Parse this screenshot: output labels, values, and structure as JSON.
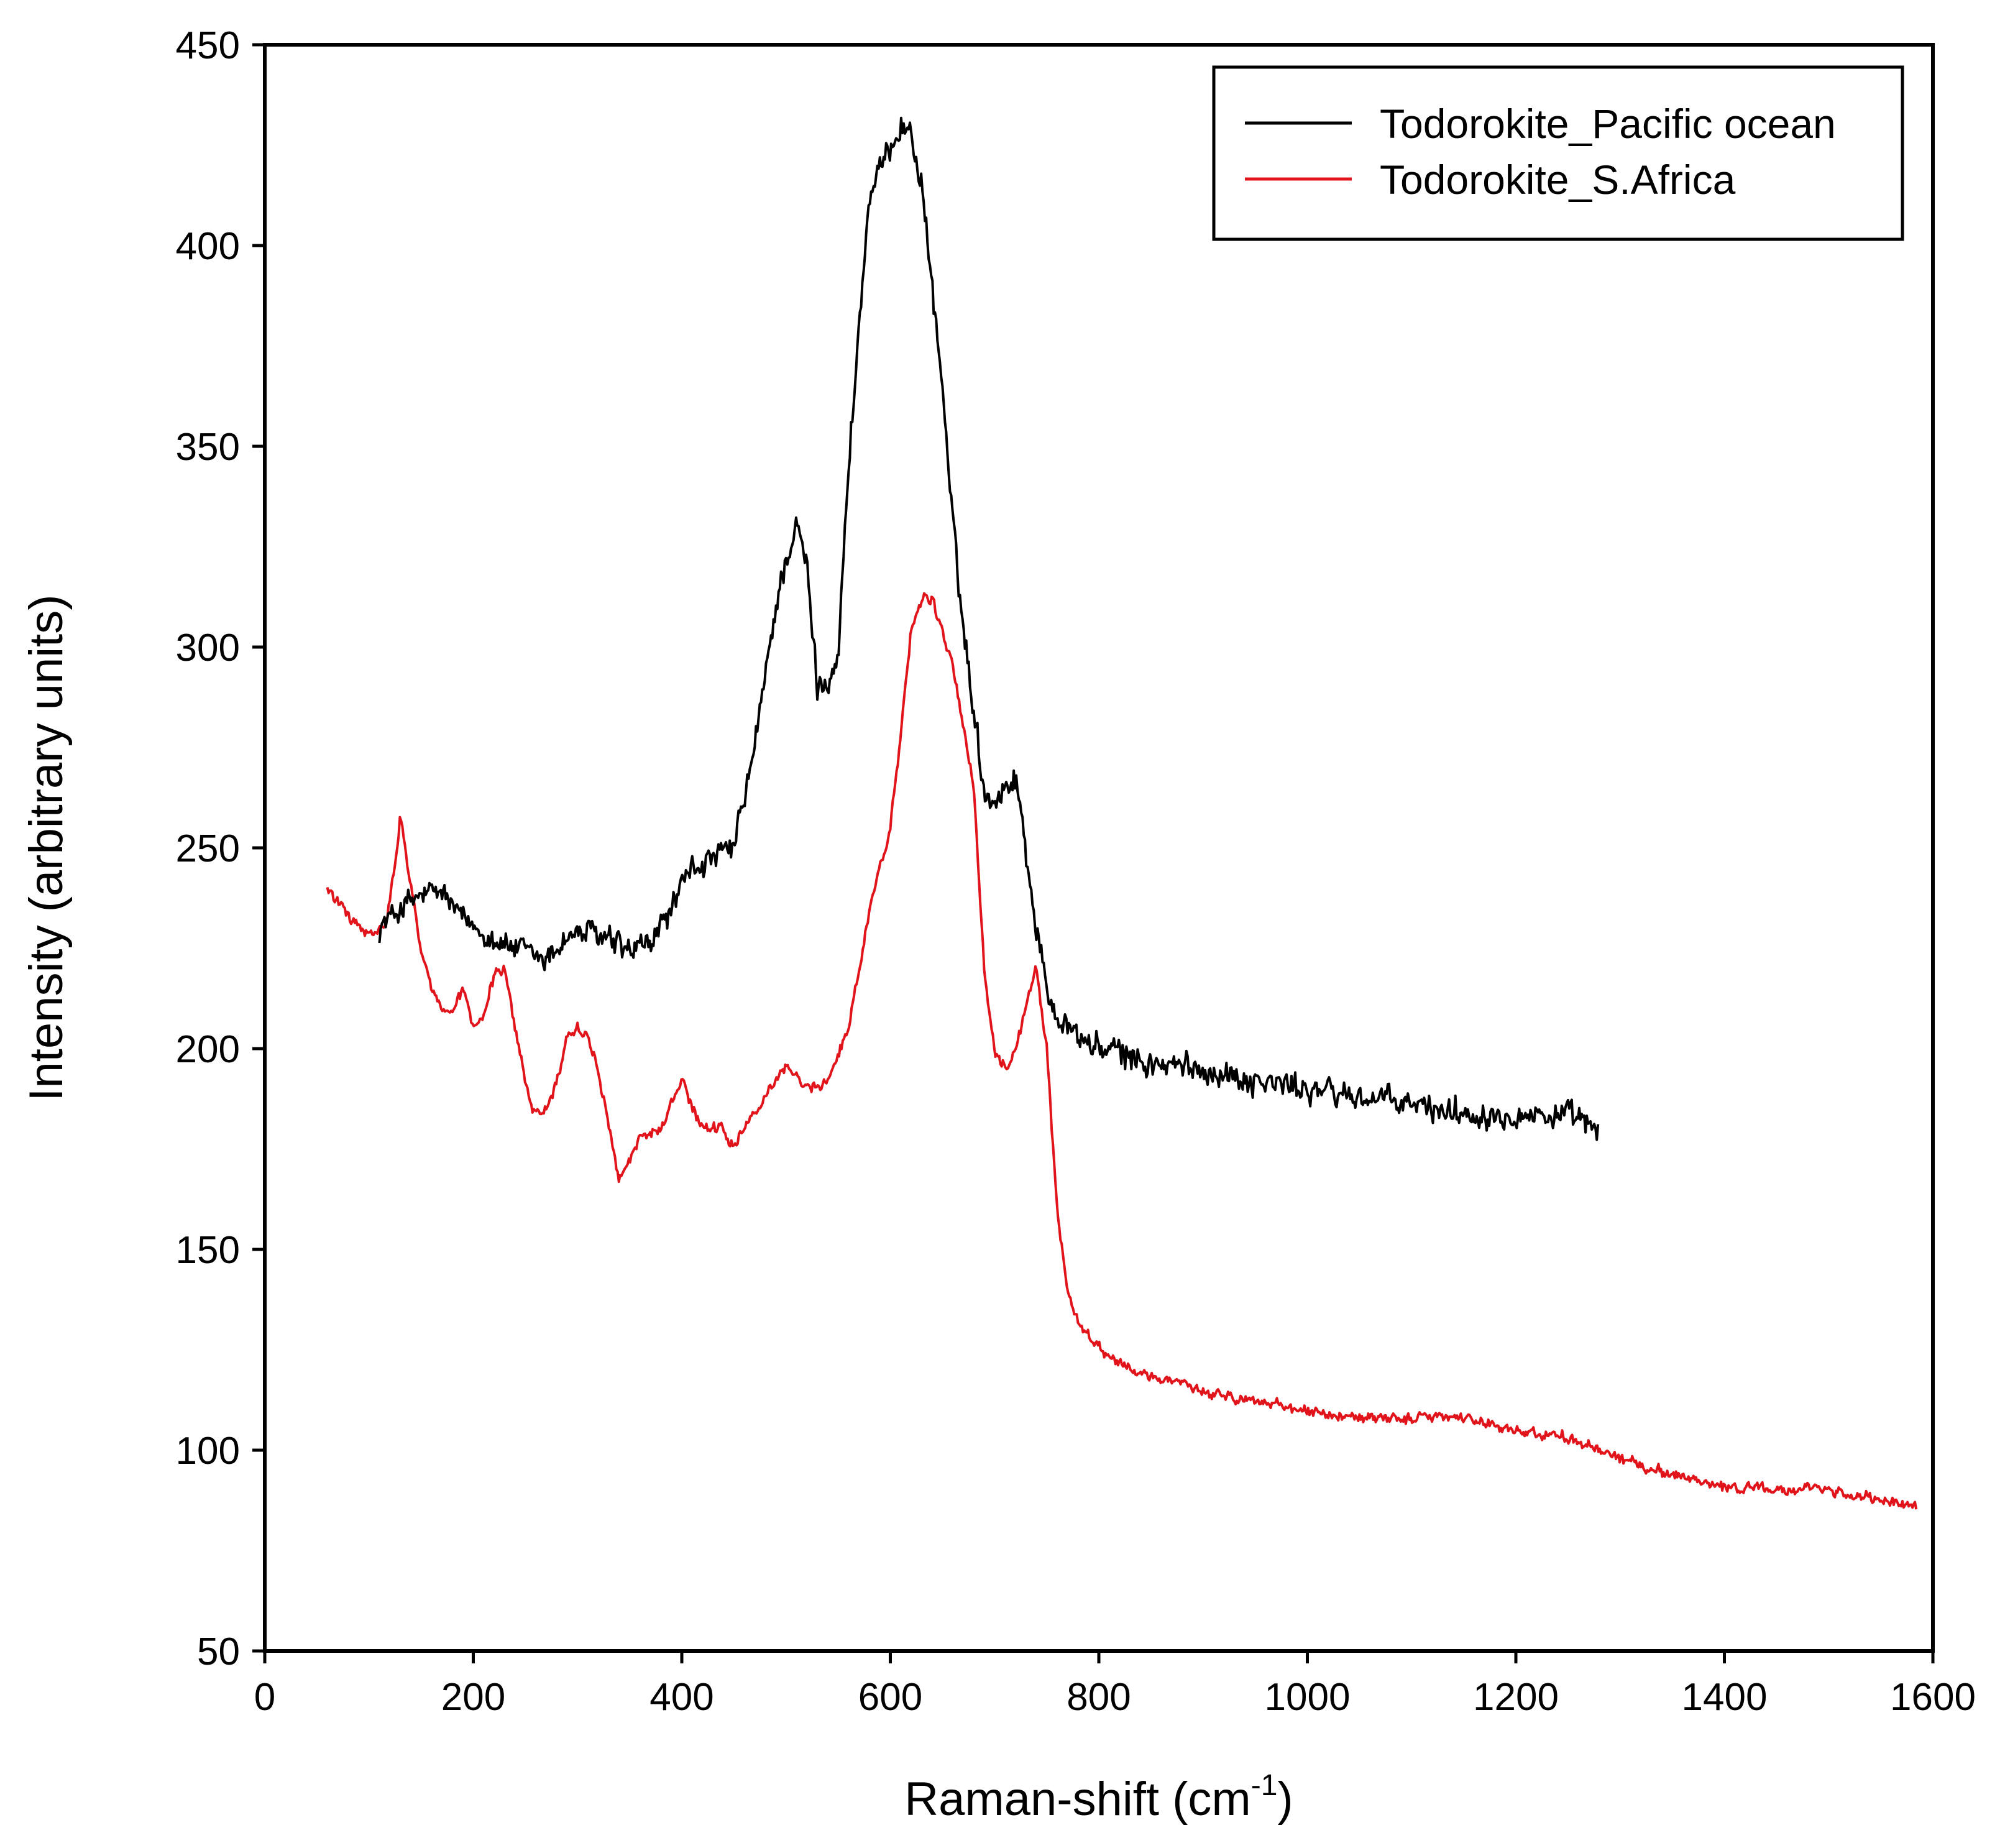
{
  "chart_data": {
    "type": "line",
    "title": "",
    "xlabel": "Raman-shift (cm-1)",
    "xlabel_parts": {
      "main": "Raman-shift (cm",
      "sup": "-1",
      "close": ")"
    },
    "ylabel": "Intensity (arbitrary units)",
    "xlim": [
      0,
      1600
    ],
    "ylim": [
      50,
      450
    ],
    "xticks": [
      0,
      200,
      400,
      600,
      800,
      1000,
      1200,
      1400,
      1600
    ],
    "yticks": [
      50,
      100,
      150,
      200,
      250,
      300,
      350,
      400,
      450
    ],
    "grid": false,
    "legend_position": "top-right",
    "series": [
      {
        "name": "Todorokite_Pacific ocean",
        "color": "#000000",
        "x": [
          110,
          130,
          150,
          170,
          190,
          210,
          230,
          250,
          270,
          290,
          310,
          330,
          350,
          370,
          390,
          410,
          430,
          450,
          470,
          490,
          500,
          510,
          520,
          530,
          540,
          550,
          560,
          570,
          580,
          590,
          600,
          610,
          620,
          630,
          640,
          650,
          660,
          670,
          680,
          690,
          700,
          710,
          720,
          730,
          740,
          750,
          760,
          770,
          780,
          800,
          820,
          850,
          900,
          950,
          1000,
          1050,
          1100,
          1150,
          1200,
          1250,
          1280
        ],
        "values": [
          230,
          235,
          238,
          239,
          232,
          229,
          226,
          224,
          222,
          228,
          229,
          227,
          224,
          226,
          235,
          245,
          247,
          250,
          275,
          310,
          322,
          330,
          320,
          290,
          292,
          298,
          345,
          380,
          412,
          418,
          425,
          430,
          428,
          415,
          390,
          365,
          330,
          305,
          285,
          264,
          262,
          265,
          268,
          250,
          230,
          215,
          208,
          206,
          203,
          200,
          199,
          196,
          195,
          192,
          190,
          188,
          186,
          184,
          184,
          183,
          180
        ],
        "noise": 4.5
      },
      {
        "name": "Todorokite_S.Africa",
        "color": "#e0141a",
        "x": [
          60,
          80,
          100,
          115,
          125,
          130,
          140,
          150,
          160,
          170,
          180,
          190,
          200,
          210,
          220,
          230,
          240,
          250,
          260,
          270,
          280,
          290,
          300,
          310,
          320,
          330,
          340,
          350,
          360,
          380,
          400,
          410,
          420,
          440,
          450,
          460,
          480,
          500,
          520,
          540,
          560,
          580,
          600,
          610,
          620,
          630,
          640,
          660,
          680,
          690,
          700,
          710,
          720,
          730,
          740,
          750,
          760,
          770,
          780,
          800,
          850,
          900,
          950,
          1000,
          1050,
          1100,
          1150,
          1200,
          1250,
          1300,
          1350,
          1400,
          1450,
          1500,
          1550,
          1585
        ],
        "values": [
          240,
          233,
          228,
          230,
          245,
          258,
          240,
          225,
          215,
          210,
          208,
          215,
          205,
          208,
          218,
          220,
          205,
          192,
          183,
          185,
          192,
          203,
          205,
          203,
          195,
          180,
          168,
          172,
          178,
          180,
          192,
          185,
          180,
          180,
          175,
          180,
          188,
          196,
          190,
          192,
          205,
          235,
          255,
          278,
          305,
          312,
          312,
          295,
          265,
          220,
          200,
          195,
          200,
          210,
          220,
          200,
          160,
          140,
          132,
          125,
          118,
          115,
          112,
          110,
          108,
          108,
          108,
          105,
          103,
          98,
          94,
          91,
          90,
          90,
          88,
          86
        ],
        "noise": 1.8
      }
    ]
  }
}
